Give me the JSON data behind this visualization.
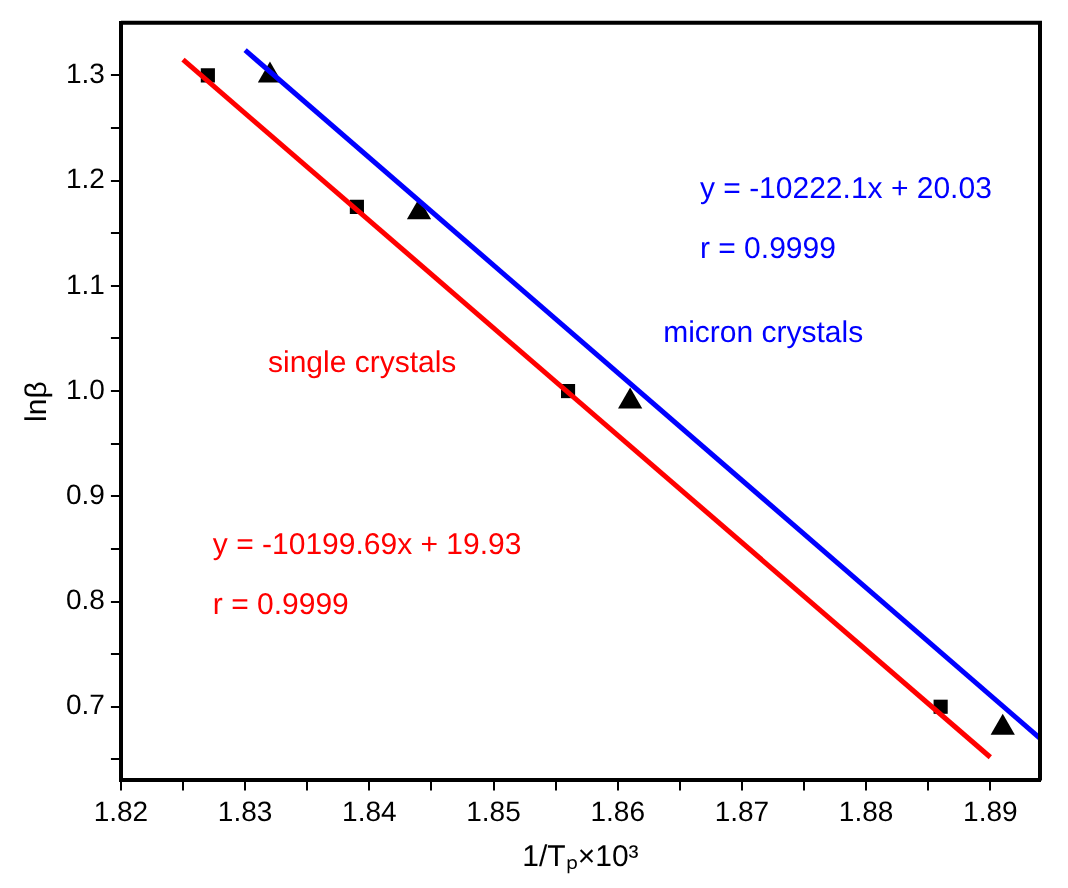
{
  "chart_data": {
    "type": "scatter",
    "xlabel": "1/Tₚ×10³",
    "ylabel": "lnβ",
    "xlim": [
      1.82,
      1.894
    ],
    "ylim": [
      0.63,
      1.35
    ],
    "xticks": [
      1.82,
      {
        "value": 1.825,
        "label": null
      },
      1.83,
      {
        "value": 1.835,
        "label": null
      },
      1.84,
      {
        "value": 1.845,
        "label": null
      },
      1.85,
      {
        "value": 1.855,
        "label": null
      },
      1.86,
      {
        "value": 1.865,
        "label": null
      },
      1.87,
      {
        "value": 1.875,
        "label": null
      },
      1.88,
      {
        "value": 1.885,
        "label": null
      },
      1.89
    ],
    "yticks": [
      {
        "value": 0.65,
        "label": null
      },
      0.7,
      {
        "value": 0.75,
        "label": null
      },
      0.8,
      {
        "value": 0.85,
        "label": null
      },
      0.9,
      {
        "value": 0.95,
        "label": null
      },
      {
        "value": 1.0,
        "label": "1.0"
      },
      {
        "value": 1.05,
        "label": null
      },
      1.1,
      {
        "value": 1.15,
        "label": null
      },
      1.2,
      {
        "value": 1.25,
        "label": null
      },
      1.3
    ],
    "grid": false,
    "legend": false,
    "series": [
      {
        "type": "line",
        "name": "single crystals",
        "color": "#ff0000",
        "x": [
          1.825,
          1.89
        ],
        "values": [
          1.315,
          0.652
        ],
        "marker": "none"
      },
      {
        "type": "line",
        "name": "micron crystals",
        "color": "#0000ff",
        "x": [
          1.83,
          1.894
        ],
        "values": [
          1.324,
          0.67
        ],
        "marker": "none"
      },
      {
        "color": "#000000",
        "x": [
          1.827,
          1.839,
          1.856,
          1.886
        ],
        "values": [
          1.3,
          1.175,
          1.0,
          0.7
        ],
        "marker": "square"
      },
      {
        "color": "#000000",
        "x": [
          1.832,
          1.844,
          1.861,
          1.891
        ],
        "values": [
          1.3,
          1.17,
          0.99,
          0.68
        ],
        "marker": "triangle"
      }
    ],
    "annotations": [
      "y = -10222.1x + 20.03",
      "r = 0.9999",
      "y = -10199.69x + 19.93",
      "r = 0.9999"
    ]
  }
}
